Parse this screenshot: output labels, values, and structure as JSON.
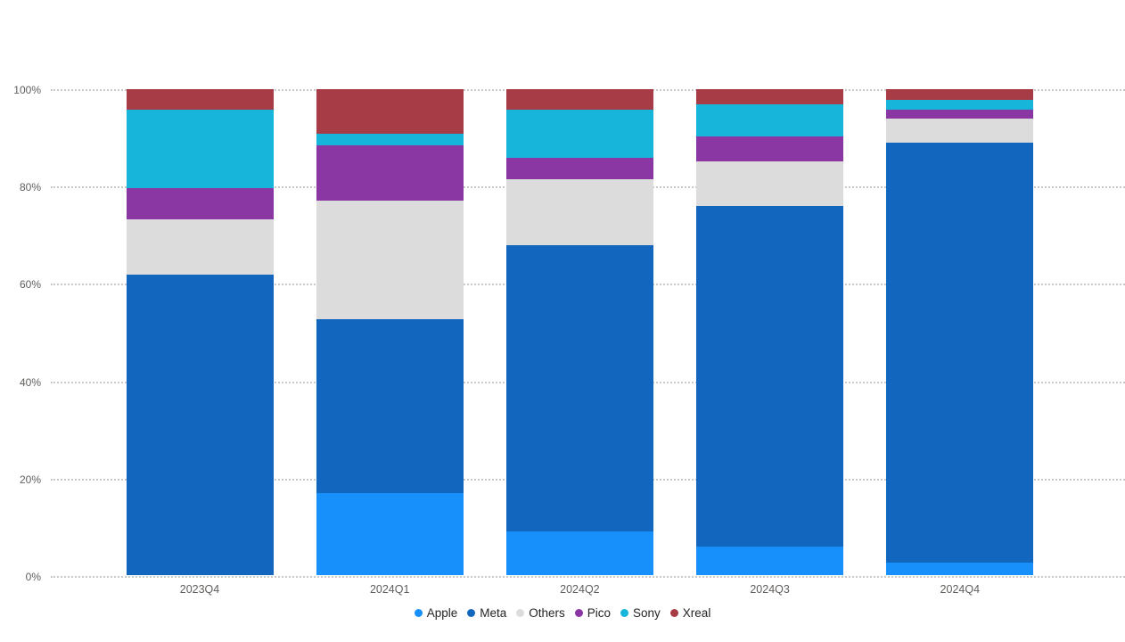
{
  "chart_data": {
    "type": "bar",
    "variant": "stacked-100-percent-column",
    "title": "",
    "xlabel": "",
    "ylabel": "",
    "categories": [
      "2023Q4",
      "2024Q1",
      "2024Q2",
      "2024Q3",
      "2024Q4"
    ],
    "series": [
      {
        "name": "Apple",
        "color": "#1890FC",
        "values": [
          0.0,
          16.8,
          9.0,
          5.9,
          2.6
        ]
      },
      {
        "name": "Meta",
        "color": "#1266BD",
        "values": [
          61.9,
          35.9,
          58.9,
          70.0,
          86.4
        ]
      },
      {
        "name": "Others",
        "color": "#DCDCDC",
        "values": [
          11.4,
          24.3,
          13.5,
          9.2,
          4.9
        ]
      },
      {
        "name": "Pico",
        "color": "#8A36A3",
        "values": [
          6.3,
          11.4,
          4.5,
          5.1,
          1.9
        ]
      },
      {
        "name": "Sony",
        "color": "#16B5D9",
        "values": [
          16.2,
          2.5,
          9.9,
          6.6,
          2.0
        ]
      },
      {
        "name": "Xreal",
        "color": "#A73B46",
        "values": [
          4.2,
          9.1,
          4.2,
          3.2,
          2.2
        ]
      }
    ],
    "ylim": [
      0,
      100
    ],
    "yticks": [
      "0%",
      "20%",
      "40%",
      "60%",
      "80%",
      "100%"
    ],
    "grid": "horizontal-dotted",
    "legend_position": "bottom-center"
  },
  "colors": {
    "background": "#FFFFFF",
    "gridline": "#C9C9C9",
    "axis_label": "#605E5C",
    "legend_label": "#252423"
  }
}
